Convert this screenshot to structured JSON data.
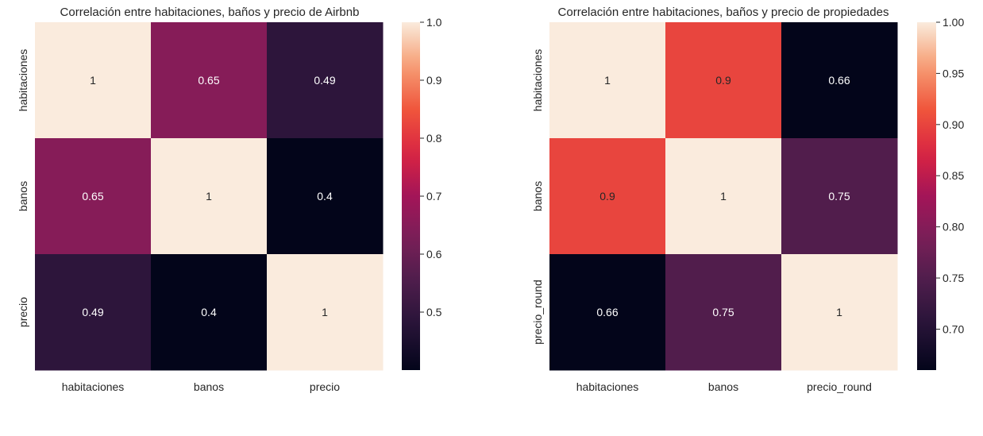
{
  "chart_data": [
    {
      "type": "heatmap",
      "title": "Correlación entre habitaciones, baños y precio de Airbnb",
      "x_labels": [
        "habitaciones",
        "banos",
        "precio"
      ],
      "y_labels": [
        "habitaciones",
        "banos",
        "precio"
      ],
      "values": [
        [
          1,
          0.65,
          0.49
        ],
        [
          0.65,
          1,
          0.4
        ],
        [
          0.49,
          0.4,
          1
        ]
      ],
      "annotations": [
        [
          "1",
          "0.65",
          "0.49"
        ],
        [
          "0.65",
          "1",
          "0.4"
        ],
        [
          "0.49",
          "0.4",
          "1"
        ]
      ],
      "colorbar": {
        "vmin": 0.4,
        "vmax": 1.0,
        "ticks": [
          0.5,
          0.6,
          0.7,
          0.8,
          0.9,
          1.0
        ],
        "tick_labels": [
          "0.5",
          "0.6",
          "0.7",
          "0.8",
          "0.9",
          "1.0"
        ]
      },
      "colormap": "rocket"
    },
    {
      "type": "heatmap",
      "title": "Correlación entre habitaciones, baños y precio de propiedades",
      "x_labels": [
        "habitaciones",
        "banos",
        "precio_round"
      ],
      "y_labels": [
        "habitaciones",
        "banos",
        "precio_round"
      ],
      "values": [
        [
          1,
          0.9,
          0.66
        ],
        [
          0.9,
          1,
          0.75
        ],
        [
          0.66,
          0.75,
          1
        ]
      ],
      "annotations": [
        [
          "1",
          "0.9",
          "0.66"
        ],
        [
          "0.9",
          "1",
          "0.75"
        ],
        [
          "0.66",
          "0.75",
          "1"
        ]
      ],
      "colorbar": {
        "vmin": 0.66,
        "vmax": 1.0,
        "ticks": [
          0.7,
          0.75,
          0.8,
          0.85,
          0.9,
          0.95,
          1.0
        ],
        "tick_labels": [
          "0.70",
          "0.75",
          "0.80",
          "0.85",
          "0.90",
          "0.95",
          "1.00"
        ]
      },
      "colormap": "rocket"
    }
  ]
}
